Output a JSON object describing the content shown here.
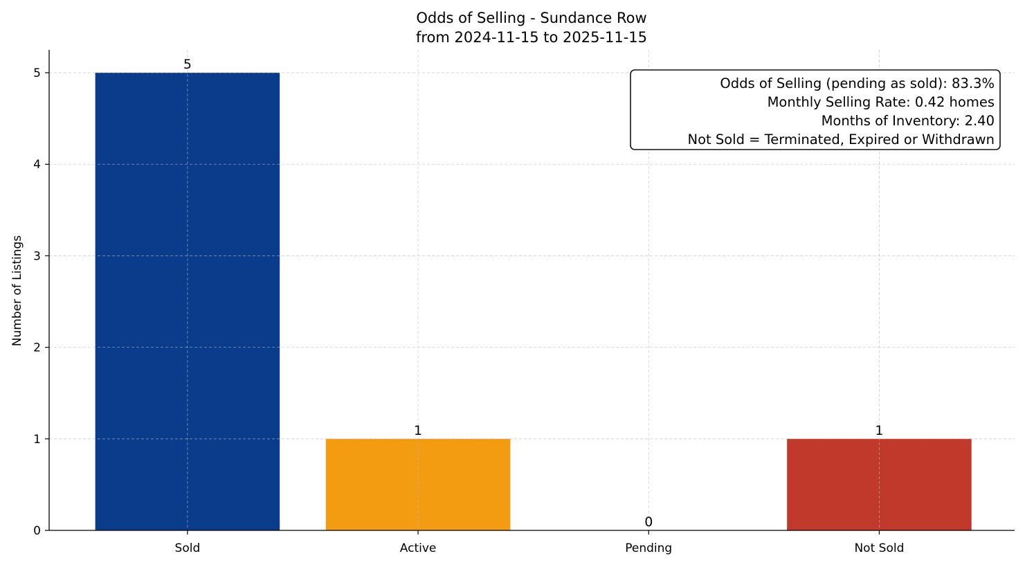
{
  "chart_data": {
    "type": "bar",
    "title": "Odds of Selling - Sundance Row",
    "subtitle": "from 2024-11-15 to 2025-11-15",
    "xlabel": "",
    "ylabel": "Number of Listings",
    "categories": [
      "Sold",
      "Active",
      "Pending",
      "Not Sold"
    ],
    "values": [
      5,
      1,
      0,
      1
    ],
    "data_labels": [
      "5",
      "1",
      "0",
      "1"
    ],
    "colors": [
      "#0b3c8c",
      "#f39c12",
      "#2e7d32",
      "#c0392b"
    ],
    "ylim": [
      0,
      5.25
    ],
    "yticks": [
      0,
      1,
      2,
      3,
      4,
      5
    ],
    "grid": true,
    "annotation_box": {
      "placement": "top-right",
      "lines": [
        "Odds of Selling (pending as sold): 83.3%",
        "Monthly Selling Rate: 0.42 homes",
        "Months of Inventory: 2.40",
        "Not Sold = Terminated, Expired or Withdrawn"
      ]
    }
  }
}
